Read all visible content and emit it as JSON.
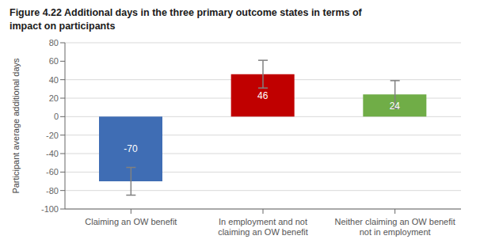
{
  "chart_data": {
    "type": "bar",
    "title": "Figure 4.22 Additional days in the three primary outcome states in terms of\nimpact on participants",
    "categories": [
      "Claiming an OW benefit",
      "In employment and not\nclaiming an OW benefit",
      "Neither claiming an OW benefit\nnot in employment"
    ],
    "values": [
      -70,
      46,
      24
    ],
    "colors": [
      "#3F6DB4",
      "#C00000",
      "#70AD47"
    ],
    "error_bar_lower": [
      -85,
      31,
      9
    ],
    "error_bar_upper": [
      -55,
      61,
      39
    ],
    "ylabel": "Participant average additional days",
    "ylim": [
      -100,
      80
    ],
    "yticks": [
      -100,
      -80,
      -60,
      -40,
      -20,
      0,
      20,
      40,
      60,
      80
    ],
    "grid": true,
    "data_labels": true
  }
}
